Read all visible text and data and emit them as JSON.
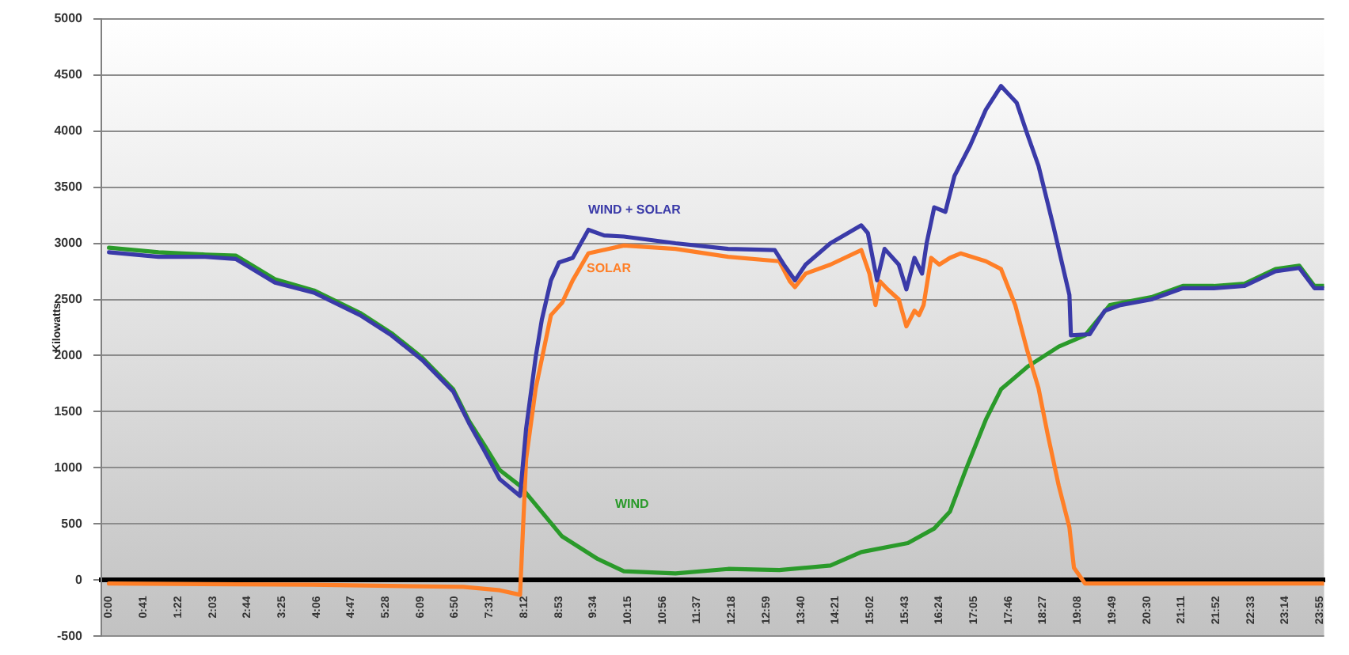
{
  "chart_data": {
    "type": "line",
    "ylabel": "Kilowatts",
    "xlim": [
      -0.15,
      24
    ],
    "xticks": [
      {
        "value": 0,
        "label": "0:00"
      },
      {
        "value": 0.6833,
        "label": "0:41"
      },
      {
        "value": 1.3667,
        "label": "1:22"
      },
      {
        "value": 2.05,
        "label": "2:03"
      },
      {
        "value": 2.7333,
        "label": "2:44"
      },
      {
        "value": 3.4167,
        "label": "3:25"
      },
      {
        "value": 4.1,
        "label": "4:06"
      },
      {
        "value": 4.7833,
        "label": "4:47"
      },
      {
        "value": 5.4667,
        "label": "5:28"
      },
      {
        "value": 6.15,
        "label": "6:09"
      },
      {
        "value": 6.8333,
        "label": "6:50"
      },
      {
        "value": 7.5167,
        "label": "7:31"
      },
      {
        "value": 8.2,
        "label": "8:12"
      },
      {
        "value": 8.8833,
        "label": "8:53"
      },
      {
        "value": 9.5667,
        "label": "9:34"
      },
      {
        "value": 10.25,
        "label": "10:15"
      },
      {
        "value": 10.9333,
        "label": "10:56"
      },
      {
        "value": 11.6167,
        "label": "11:37"
      },
      {
        "value": 12.3,
        "label": "12:18"
      },
      {
        "value": 12.9833,
        "label": "12:59"
      },
      {
        "value": 13.6667,
        "label": "13:40"
      },
      {
        "value": 14.35,
        "label": "14:21"
      },
      {
        "value": 15.0333,
        "label": "15:02"
      },
      {
        "value": 15.7167,
        "label": "15:43"
      },
      {
        "value": 16.4,
        "label": "16:24"
      },
      {
        "value": 17.0833,
        "label": "17:05"
      },
      {
        "value": 17.7667,
        "label": "17:46"
      },
      {
        "value": 18.45,
        "label": "18:27"
      },
      {
        "value": 19.1333,
        "label": "19:08"
      },
      {
        "value": 19.8167,
        "label": "19:49"
      },
      {
        "value": 20.5,
        "label": "20:30"
      },
      {
        "value": 21.1833,
        "label": "21:11"
      },
      {
        "value": 21.8667,
        "label": "21:52"
      },
      {
        "value": 22.55,
        "label": "22:33"
      },
      {
        "value": 23.2333,
        "label": "23:14"
      },
      {
        "value": 23.9167,
        "label": "23:55"
      }
    ],
    "ylim": [
      -500,
      5000
    ],
    "yticks": [
      -500,
      0,
      500,
      1000,
      1500,
      2000,
      2500,
      3000,
      3500,
      4000,
      4500,
      5000
    ],
    "grid": "y",
    "legend": false,
    "series": [
      {
        "name": "WIND + SOLAR",
        "color": "#3a3aa8",
        "x": [
          0,
          0.98,
          1.9,
          2.51,
          3.28,
          4.05,
          4.96,
          5.58,
          6.19,
          6.8,
          7.11,
          7.42,
          7.72,
          8.12,
          8.24,
          8.43,
          8.55,
          8.73,
          8.89,
          9.16,
          9.47,
          9.78,
          10.17,
          11.19,
          12.23,
          13.15,
          13.33,
          13.55,
          13.76,
          14.25,
          14.86,
          14.99,
          15.17,
          15.32,
          15.6,
          15.75,
          15.91,
          16.06,
          16.15,
          16.3,
          16.52,
          16.7,
          17.01,
          17.32,
          17.62,
          17.93,
          18.14,
          18.36,
          18.66,
          18.97,
          19.0,
          19.37,
          19.67,
          19.98,
          20.59,
          21.21,
          21.82,
          22.43,
          23.04,
          23.51,
          23.81,
          24
        ],
        "values": [
          2920,
          2880,
          2880,
          2860,
          2650,
          2560,
          2360,
          2180,
          1960,
          1680,
          1400,
          1150,
          900,
          750,
          1350,
          1990,
          2320,
          2670,
          2830,
          2870,
          3120,
          3070,
          3060,
          3000,
          2950,
          2940,
          2810,
          2670,
          2810,
          3000,
          3160,
          3090,
          2670,
          2950,
          2810,
          2590,
          2870,
          2730,
          3000,
          3320,
          3280,
          3600,
          3870,
          4190,
          4400,
          4250,
          3970,
          3690,
          3140,
          2540,
          2180,
          2190,
          2400,
          2450,
          2500,
          2600,
          2600,
          2620,
          2750,
          2780,
          2600,
          2600
        ]
      },
      {
        "name": "SOLAR",
        "color": "#ff7f27",
        "x": [
          0,
          4,
          7,
          7.72,
          8.12,
          8.24,
          8.43,
          8.73,
          8.95,
          9.16,
          9.47,
          10.17,
          11.19,
          12.23,
          13.24,
          13.45,
          13.55,
          13.76,
          14.25,
          14.86,
          15.02,
          15.14,
          15.23,
          15.38,
          15.6,
          15.75,
          15.91,
          16.0,
          16.09,
          16.24,
          16.4,
          16.61,
          16.82,
          17.32,
          17.62,
          17.9,
          18.14,
          18.36,
          18.54,
          18.76,
          18.97,
          19.06,
          19.28,
          24
        ],
        "values": [
          -30,
          -40,
          -60,
          -90,
          -130,
          1080,
          1710,
          2360,
          2470,
          2670,
          2910,
          2980,
          2950,
          2880,
          2840,
          2660,
          2610,
          2730,
          2810,
          2940,
          2730,
          2450,
          2660,
          2590,
          2500,
          2260,
          2400,
          2360,
          2450,
          2870,
          2810,
          2870,
          2910,
          2840,
          2770,
          2450,
          2040,
          1710,
          1300,
          840,
          470,
          110,
          -30,
          -30
        ]
      },
      {
        "name": "WIND",
        "color": "#2a9a2a",
        "x": [
          0,
          0.98,
          1.9,
          2.51,
          3.28,
          4.05,
          4.96,
          5.58,
          6.19,
          6.8,
          7.11,
          7.42,
          7.72,
          8.12,
          8.95,
          9.65,
          10.17,
          11.19,
          12.23,
          13.24,
          14.25,
          14.86,
          15.78,
          16.3,
          16.61,
          16.92,
          17.32,
          17.62,
          18.14,
          18.76,
          19.28,
          19.77,
          20.59,
          21.21,
          21.82,
          22.43,
          23.04,
          23.51,
          23.81,
          24
        ],
        "values": [
          2960,
          2920,
          2900,
          2890,
          2680,
          2580,
          2380,
          2200,
          1980,
          1700,
          1420,
          1200,
          980,
          840,
          390,
          190,
          80,
          60,
          100,
          90,
          130,
          250,
          330,
          460,
          610,
          980,
          1430,
          1700,
          1900,
          2080,
          2180,
          2450,
          2520,
          2620,
          2620,
          2640,
          2770,
          2800,
          2620,
          2620
        ]
      }
    ]
  }
}
